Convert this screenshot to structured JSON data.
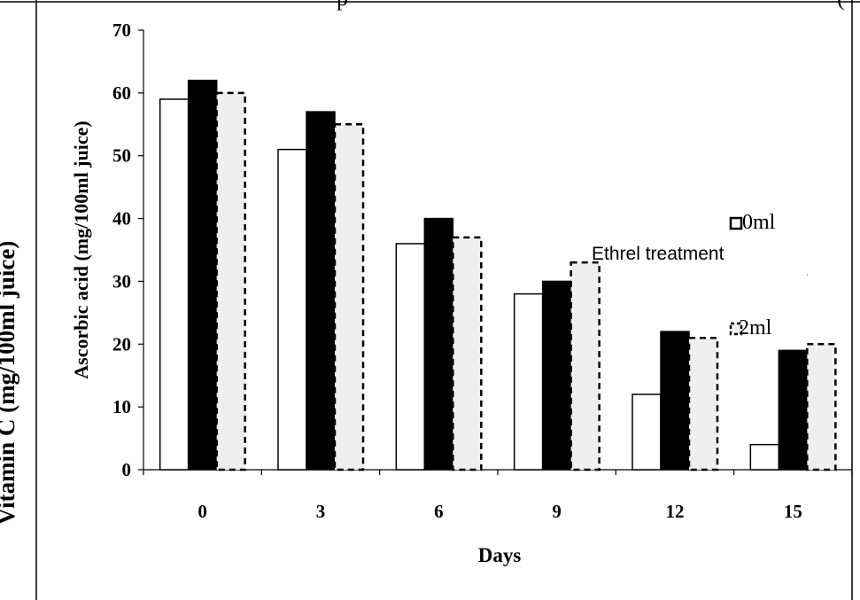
{
  "chart_data": {
    "type": "bar",
    "top_text": "p",
    "top_text_right": "(",
    "outer_ylabel": "Vitamin C (mg/100ml juice)",
    "xlabel": "Days",
    "ylabel": "Ascorbic acid  (mg/100ml juice)",
    "categories": [
      "0",
      "3",
      "6",
      "9",
      "12",
      "15"
    ],
    "ylim": [
      0,
      70
    ],
    "yticks": [
      0,
      10,
      20,
      30,
      40,
      50,
      60,
      70
    ],
    "grid": false,
    "legend_title": "Ethrel treatment",
    "legend_placement": "top-right",
    "series": [
      {
        "name": "0ml",
        "values": [
          59,
          51,
          36,
          28,
          12,
          4
        ],
        "fill": "#ffffff",
        "stroke": "#000000",
        "dashed": false
      },
      {
        "values": [
          62,
          57,
          40,
          30,
          22,
          19
        ],
        "fill": "#000000",
        "stroke": "#000000",
        "dashed": false
      },
      {
        "name": "2ml",
        "values": [
          60,
          55,
          37,
          33,
          21,
          20
        ],
        "fill": "#efefef",
        "stroke": "#000000",
        "dashed": true
      }
    ]
  }
}
